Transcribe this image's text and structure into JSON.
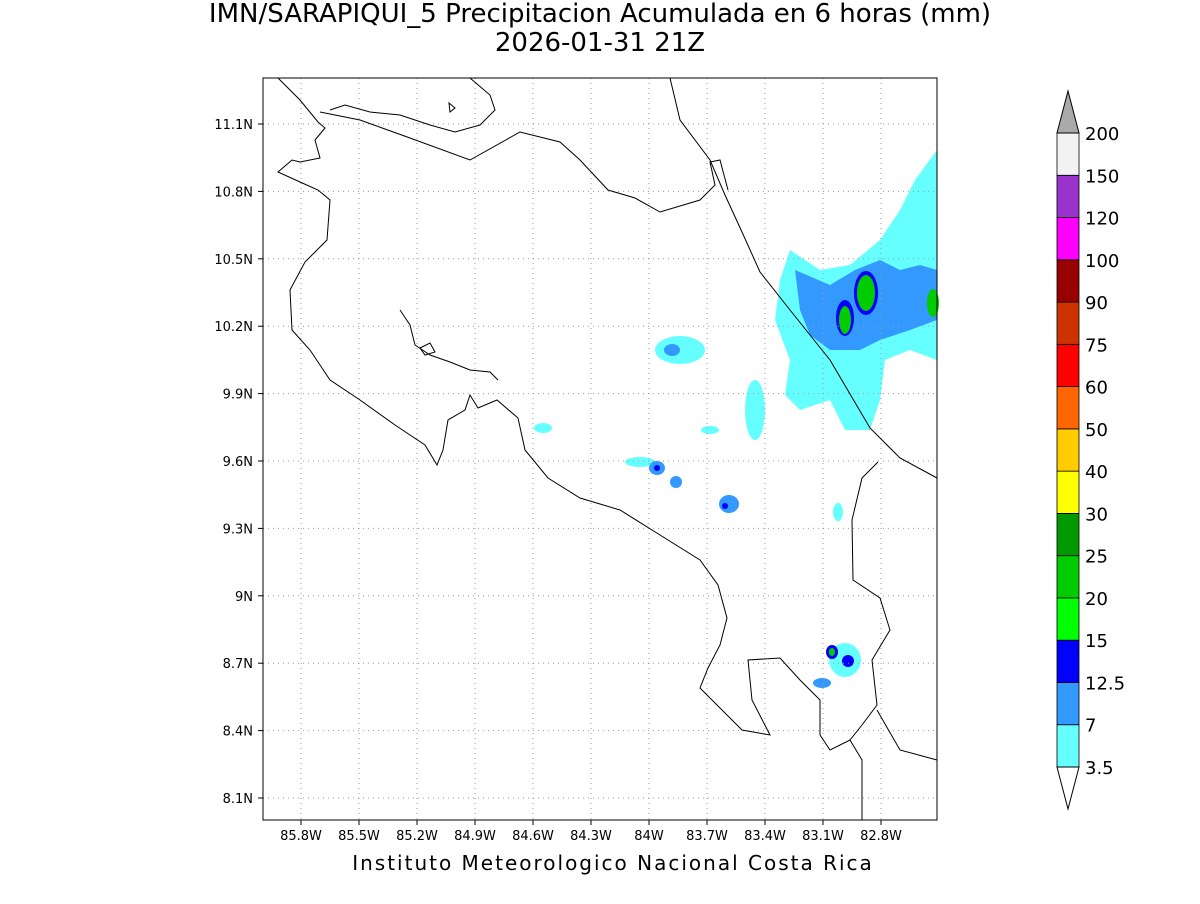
{
  "map": {
    "title": "IMN/SARAPIQUI_5 Precipitacion Acumulada en 6 horas (mm)",
    "subtitle": "2026-01-31 21Z",
    "lon_labels": [
      "85.8W",
      "85.5W",
      "85.2W",
      "84.9W",
      "84.6W",
      "84.3W",
      "84W",
      "83.7W",
      "83.4W",
      "83.1W",
      "82.8W"
    ],
    "lat_labels": [
      "11.1N",
      "10.8N",
      "10.5N",
      "10.2N",
      "9.9N",
      "9.6N",
      "9.3N",
      "9N",
      "8.7N",
      "8.4N",
      "8.1N"
    ],
    "colorbar": {
      "levels": [
        3.5,
        7,
        12.5,
        15,
        20,
        25,
        30,
        40,
        50,
        60,
        75,
        90,
        100,
        120,
        150,
        200
      ],
      "colors": [
        "#66ffff",
        "#3399ff",
        "#0000ff",
        "#00ff00",
        "#00cc00",
        "#009900",
        "#ffff00",
        "#ffcc00",
        "#ff6600",
        "#ff0000",
        "#cc3300",
        "#990000",
        "#ff00ff",
        "#9933cc",
        "#f2f2f2"
      ],
      "below_color": "#ffffff",
      "above_color": "#aaaaaa"
    },
    "footer": "Instituto Meteorologico Nacional Costa Rica"
  }
}
